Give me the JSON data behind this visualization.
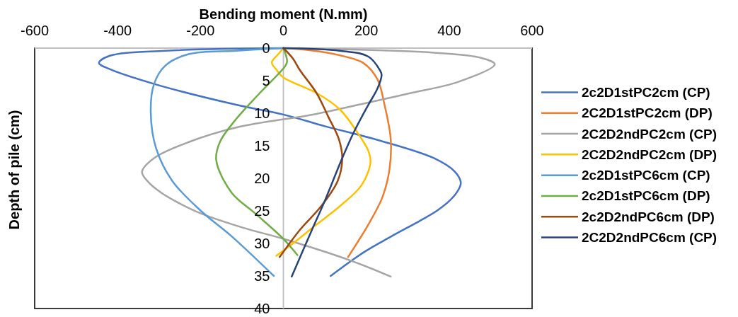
{
  "chart_data": {
    "type": "line",
    "xlabel": "Bending moment (N.mm)",
    "ylabel": "Depth of pile (cm)",
    "xlim": [
      -600,
      600
    ],
    "xticks": [
      -600,
      -400,
      -200,
      0,
      200,
      400,
      600
    ],
    "ylim": [
      40,
      0
    ],
    "yticks": [
      0,
      5,
      10,
      15,
      20,
      25,
      30,
      35,
      40
    ],
    "legend": "right",
    "series": [
      {
        "name": "2c2D1stPC2cm (CP)",
        "color": "#4472c4",
        "x": [
          0,
          -285,
          -420,
          -445,
          -420,
          -312,
          -114,
          0,
          100,
          227,
          363,
          414,
          428,
          420,
          400,
          370,
          330,
          261,
          193,
          114
        ],
        "values": [
          0,
          0.4,
          1.2,
          2.3,
          3.2,
          5.5,
          8.7,
          10.2,
          12.0,
          14.1,
          16.9,
          19.0,
          20.7,
          22.0,
          23.5,
          25.0,
          26.5,
          28.9,
          31.4,
          35.0
        ]
      },
      {
        "name": "2C2D1stPC2cm (DP)",
        "color": "#ed7d31",
        "x": [
          0,
          60,
          136,
          193,
          227,
          244,
          259,
          256,
          239,
          205,
          156
        ],
        "values": [
          0,
          0.3,
          1.1,
          2.3,
          4.8,
          8.7,
          14.0,
          18.6,
          22.9,
          27.1,
          32.1
        ]
      },
      {
        "name": "2C2D2ndPC2cm (CP)",
        "color": "#a5a5a5",
        "x": [
          0,
          363,
          477,
          510,
          421,
          307,
          216,
          80,
          -114,
          -227,
          -312,
          -341,
          -324,
          -295,
          -258,
          -199,
          -97,
          0,
          165,
          259
        ],
        "values": [
          0,
          0.7,
          1.5,
          2.5,
          5.2,
          6.9,
          8.2,
          10.1,
          12.2,
          14.4,
          16.9,
          19.0,
          20.7,
          22.2,
          23.6,
          25.4,
          27.6,
          29.3,
          32.7,
          35.1
        ]
      },
      {
        "name": "2C2D2ndPC2cm (DP)",
        "color": "#ffc000",
        "x": [
          0,
          -12,
          -28,
          -17,
          0,
          80,
          136,
          182,
          205,
          210,
          188,
          136,
          80,
          23,
          -17
        ],
        "values": [
          0,
          0.9,
          2.2,
          3.3,
          4.5,
          6.9,
          9.4,
          13.3,
          15.8,
          17.6,
          21.1,
          24.3,
          27.1,
          30.0,
          31.9
        ]
      },
      {
        "name": "2c2D1stPC6cm (CP)",
        "color": "#5b9bd5",
        "x": [
          0,
          -114,
          -227,
          -285,
          -312,
          -320,
          -307,
          -268,
          -199,
          -125,
          -23
        ],
        "values": [
          0,
          0.4,
          0.9,
          2.7,
          5.5,
          9.8,
          15.4,
          20.4,
          25.0,
          28.9,
          35.0
        ]
      },
      {
        "name": "2c2D1stPC6cm (DP)",
        "color": "#70ad47",
        "x": [
          0,
          9,
          5,
          -57,
          -114,
          -153,
          -162,
          -125,
          -68,
          0,
          34
        ],
        "values": [
          0,
          2.0,
          2.7,
          6.9,
          10.9,
          14.4,
          17.2,
          22.2,
          25.4,
          29.3,
          31.8
        ]
      },
      {
        "name": "2c2D2ndPC6cm (DP)",
        "color": "#9e480e",
        "x": [
          0,
          23,
          40,
          80,
          108,
          134,
          142,
          131,
          91,
          40,
          -9
        ],
        "values": [
          0,
          1.6,
          3.4,
          6.9,
          10.5,
          14.0,
          17.0,
          20.4,
          24.3,
          27.9,
          32.1
        ]
      },
      {
        "name": "2C2D2ndPC6cm (CP)",
        "color": "#264478",
        "x": [
          0,
          136,
          205,
          233,
          237,
          227,
          205,
          170,
          142,
          97,
          69,
          20
        ],
        "values": [
          0,
          0.4,
          1.3,
          3.4,
          4.1,
          6.2,
          8.7,
          12.9,
          16.9,
          23.9,
          27.9,
          35.1
        ]
      }
    ]
  }
}
